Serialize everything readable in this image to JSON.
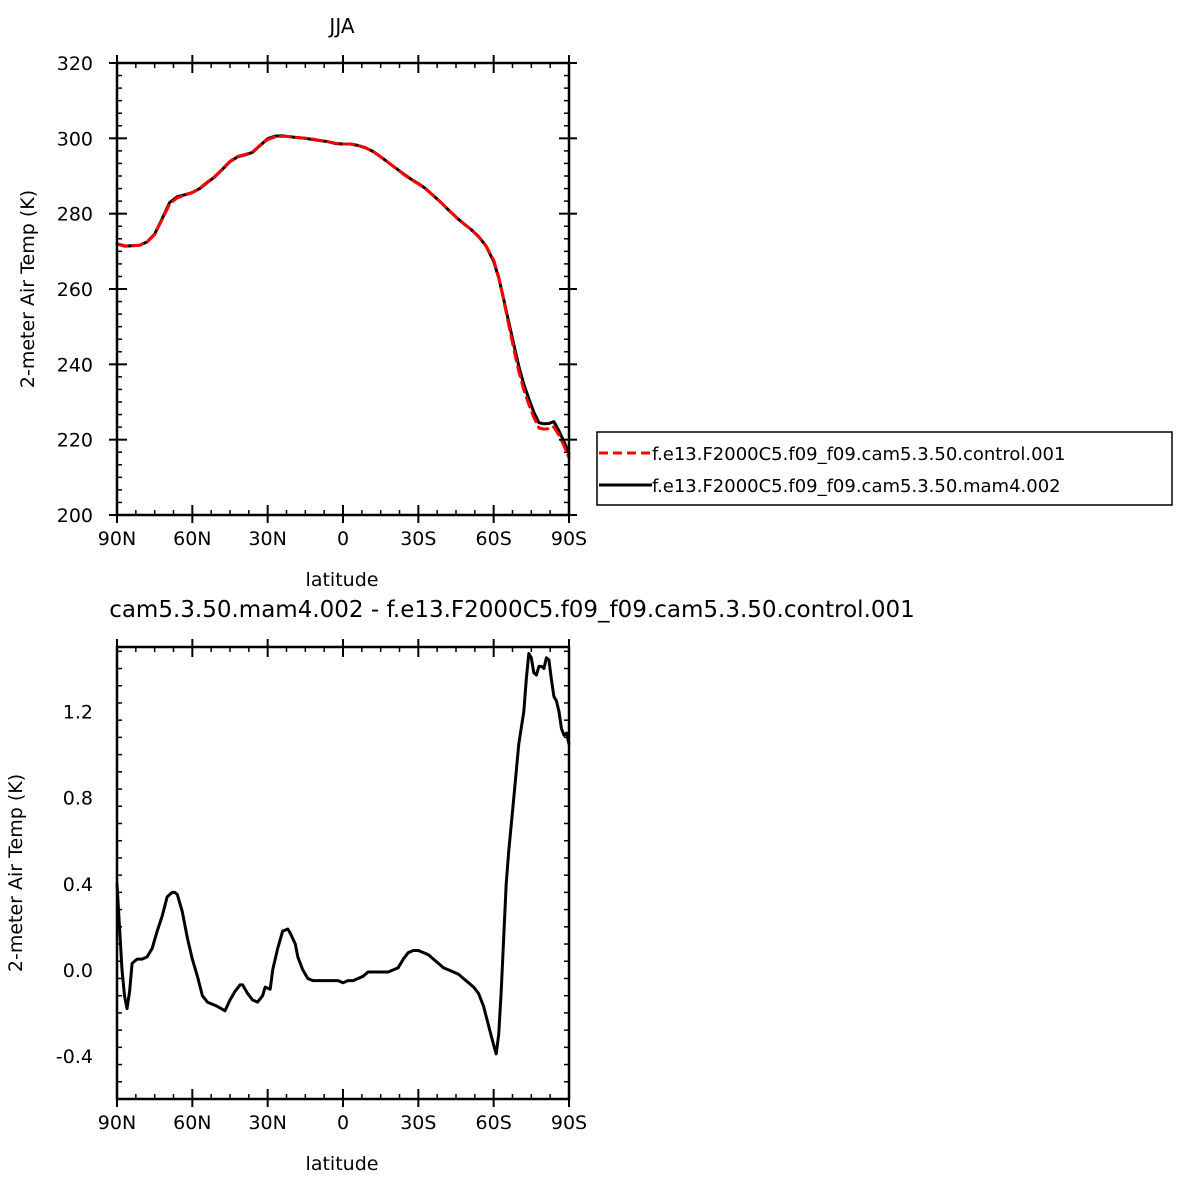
{
  "colors": {
    "control": "#ff0000",
    "mam4": "#000000",
    "frame": "#000000"
  },
  "chart_data": [
    {
      "type": "line",
      "title": "JJA",
      "xlabel": "latitude",
      "ylabel": "2-meter Air Temp (K)",
      "xlim": [
        90,
        -90
      ],
      "ylim": [
        200,
        320
      ],
      "xticks": [
        90,
        60,
        30,
        0,
        -30,
        -60,
        -90
      ],
      "xtick_labels": [
        "90N",
        "60N",
        "30N",
        "0",
        "30S",
        "60S",
        "90S"
      ],
      "yticks": [
        200,
        220,
        240,
        260,
        280,
        300,
        320
      ],
      "ytick_labels": [
        "200",
        "220",
        "240",
        "260",
        "280",
        "300",
        "320"
      ],
      "legend": {
        "placement": "right",
        "entries": [
          "f.e13.F2000C5.f09_f09.cam5.3.50.control.001",
          "f.e13.F2000C5.f09_f09.cam5.3.50.mam4.002"
        ]
      },
      "series": [
        {
          "name": "f.e13.F2000C5.f09_f09.cam5.3.50.control.001",
          "style": "dashed",
          "color": "#ff0000",
          "x": [
            90,
            87,
            84,
            81,
            78,
            75,
            72,
            69,
            66,
            63,
            60,
            57,
            54,
            51,
            48,
            45,
            42,
            39,
            36,
            33,
            30,
            27,
            24,
            21,
            18,
            15,
            12,
            9,
            6,
            3,
            0,
            -3,
            -6,
            -9,
            -12,
            -15,
            -18,
            -21,
            -24,
            -27,
            -30,
            -33,
            -36,
            -39,
            -42,
            -45,
            -48,
            -51,
            -54,
            -57,
            -60,
            -62,
            -64,
            -66,
            -68,
            -70,
            -72,
            -74,
            -76,
            -78,
            -80,
            -82,
            -84,
            -86,
            -88,
            -90
          ],
          "y": [
            272.0,
            271.5,
            271.5,
            271.6,
            272.5,
            274.5,
            278.5,
            282.6,
            284.2,
            284.9,
            285.6,
            286.8,
            288.4,
            289.9,
            291.9,
            293.9,
            295.2,
            295.7,
            296.4,
            298.2,
            299.7,
            300.4,
            300.6,
            300.4,
            300.2,
            300.0,
            299.8,
            299.4,
            299.1,
            298.7,
            298.5,
            298.5,
            298.1,
            297.5,
            296.5,
            295.1,
            293.6,
            292.1,
            290.5,
            289.1,
            287.9,
            286.5,
            284.8,
            283.0,
            281.0,
            279.1,
            277.4,
            275.8,
            273.9,
            271.4,
            267.7,
            263.2,
            257.1,
            250.5,
            244.1,
            238.1,
            233.2,
            229.4,
            225.9,
            223.1,
            222.8,
            222.9,
            223.4,
            221.2,
            218.4,
            215.2
          ]
        },
        {
          "name": "f.e13.F2000C5.f09_f09.cam5.3.50.mam4.002",
          "style": "solid",
          "color": "#000000",
          "x": [
            90,
            87,
            84,
            81,
            78,
            75,
            72,
            69,
            66,
            63,
            60,
            57,
            54,
            51,
            48,
            45,
            42,
            39,
            36,
            33,
            30,
            27,
            24,
            21,
            18,
            15,
            12,
            9,
            6,
            3,
            0,
            -3,
            -6,
            -9,
            -12,
            -15,
            -18,
            -21,
            -24,
            -27,
            -30,
            -33,
            -36,
            -39,
            -42,
            -45,
            -48,
            -51,
            -54,
            -57,
            -60,
            -62,
            -64,
            -66,
            -68,
            -70,
            -72,
            -74,
            -76,
            -78,
            -80,
            -82,
            -84,
            -86,
            -88,
            -90
          ],
          "y": [
            272.0,
            271.4,
            271.5,
            271.6,
            272.5,
            274.6,
            278.7,
            283.0,
            284.5,
            285.0,
            285.6,
            286.7,
            288.3,
            289.8,
            291.8,
            293.8,
            295.1,
            295.6,
            296.3,
            298.1,
            299.9,
            300.6,
            300.7,
            300.4,
            300.2,
            300.0,
            299.7,
            299.4,
            299.1,
            298.6,
            298.5,
            298.5,
            298.1,
            297.5,
            296.5,
            295.1,
            293.6,
            292.1,
            290.6,
            289.2,
            288.0,
            286.6,
            284.8,
            283.0,
            281.0,
            279.1,
            277.4,
            275.8,
            273.9,
            271.4,
            267.3,
            263.0,
            257.3,
            251.3,
            245.3,
            239.5,
            234.7,
            230.9,
            227.3,
            224.5,
            224.2,
            224.3,
            224.8,
            222.3,
            219.5,
            216.3
          ]
        }
      ]
    },
    {
      "type": "line",
      "title": "cam5.3.50.mam4.002 - f.e13.F2000C5.f09_f09.cam5.3.50.control.001",
      "xlabel": "latitude",
      "ylabel": "2-meter Air Temp (K)",
      "xlim": [
        90,
        -90
      ],
      "ylim": [
        -0.6,
        1.5
      ],
      "xticks": [
        90,
        60,
        30,
        0,
        -30,
        -60,
        -90
      ],
      "xtick_labels": [
        "90N",
        "60N",
        "30N",
        "0",
        "30S",
        "60S",
        "90S"
      ],
      "yticks": [
        -0.4,
        0.0,
        0.4,
        0.8,
        1.2
      ],
      "ytick_labels": [
        "-0.4",
        "0.0",
        "0.4",
        "0.8",
        "1.2"
      ],
      "series": [
        {
          "name": "cam5.3.50.mam4.002 - f.e13.F2000C5.f09_f09.cam5.3.50.control.001",
          "style": "solid",
          "color": "#000000",
          "x": [
            90,
            89,
            88,
            87,
            86,
            85,
            84,
            83,
            82,
            80,
            78,
            76,
            74,
            72,
            70,
            68,
            67,
            66,
            64,
            62,
            60,
            58,
            56,
            54,
            52,
            50,
            47,
            45,
            43,
            41,
            40,
            38,
            36,
            34,
            32,
            31,
            29,
            28,
            26,
            24,
            22,
            21,
            19,
            18,
            16,
            14,
            12,
            10,
            8,
            6,
            4,
            2,
            0,
            -2,
            -4,
            -6,
            -8,
            -10,
            -12,
            -14,
            -16,
            -18,
            -20,
            -22,
            -24,
            -26,
            -28,
            -30,
            -32,
            -34,
            -36,
            -38,
            -40,
            -42,
            -44,
            -46,
            -48,
            -50,
            -52,
            -54,
            -56,
            -58,
            -60,
            -61,
            -62,
            -63,
            -64,
            -65,
            -66,
            -68,
            -70,
            -72,
            -73,
            -74,
            -75,
            -76,
            -77,
            -78,
            -79,
            -80,
            -81,
            -82,
            -83,
            -84,
            -85,
            -86,
            -87,
            -88,
            -89,
            -90
          ],
          "y": [
            0.4,
            0.2,
            0.0,
            -0.12,
            -0.18,
            -0.1,
            0.03,
            0.04,
            0.05,
            0.05,
            0.06,
            0.1,
            0.18,
            0.25,
            0.34,
            0.36,
            0.36,
            0.35,
            0.27,
            0.15,
            0.05,
            -0.03,
            -0.12,
            -0.15,
            -0.16,
            -0.17,
            -0.19,
            -0.14,
            -0.1,
            -0.07,
            -0.07,
            -0.11,
            -0.14,
            -0.15,
            -0.12,
            -0.08,
            -0.09,
            0.0,
            0.1,
            0.18,
            0.19,
            0.17,
            0.12,
            0.06,
            0.0,
            -0.04,
            -0.05,
            -0.05,
            -0.05,
            -0.05,
            -0.05,
            -0.05,
            -0.06,
            -0.05,
            -0.05,
            -0.04,
            -0.03,
            -0.01,
            -0.01,
            -0.01,
            -0.01,
            -0.01,
            0.0,
            0.01,
            0.05,
            0.08,
            0.09,
            0.09,
            0.08,
            0.07,
            0.05,
            0.03,
            0.01,
            0.0,
            -0.01,
            -0.02,
            -0.04,
            -0.06,
            -0.08,
            -0.11,
            -0.17,
            -0.26,
            -0.35,
            -0.39,
            -0.3,
            -0.1,
            0.15,
            0.4,
            0.55,
            0.8,
            1.05,
            1.2,
            1.35,
            1.47,
            1.45,
            1.38,
            1.37,
            1.41,
            1.41,
            1.4,
            1.45,
            1.44,
            1.35,
            1.27,
            1.25,
            1.2,
            1.12,
            1.09,
            1.1,
            1.05
          ]
        }
      ]
    }
  ]
}
